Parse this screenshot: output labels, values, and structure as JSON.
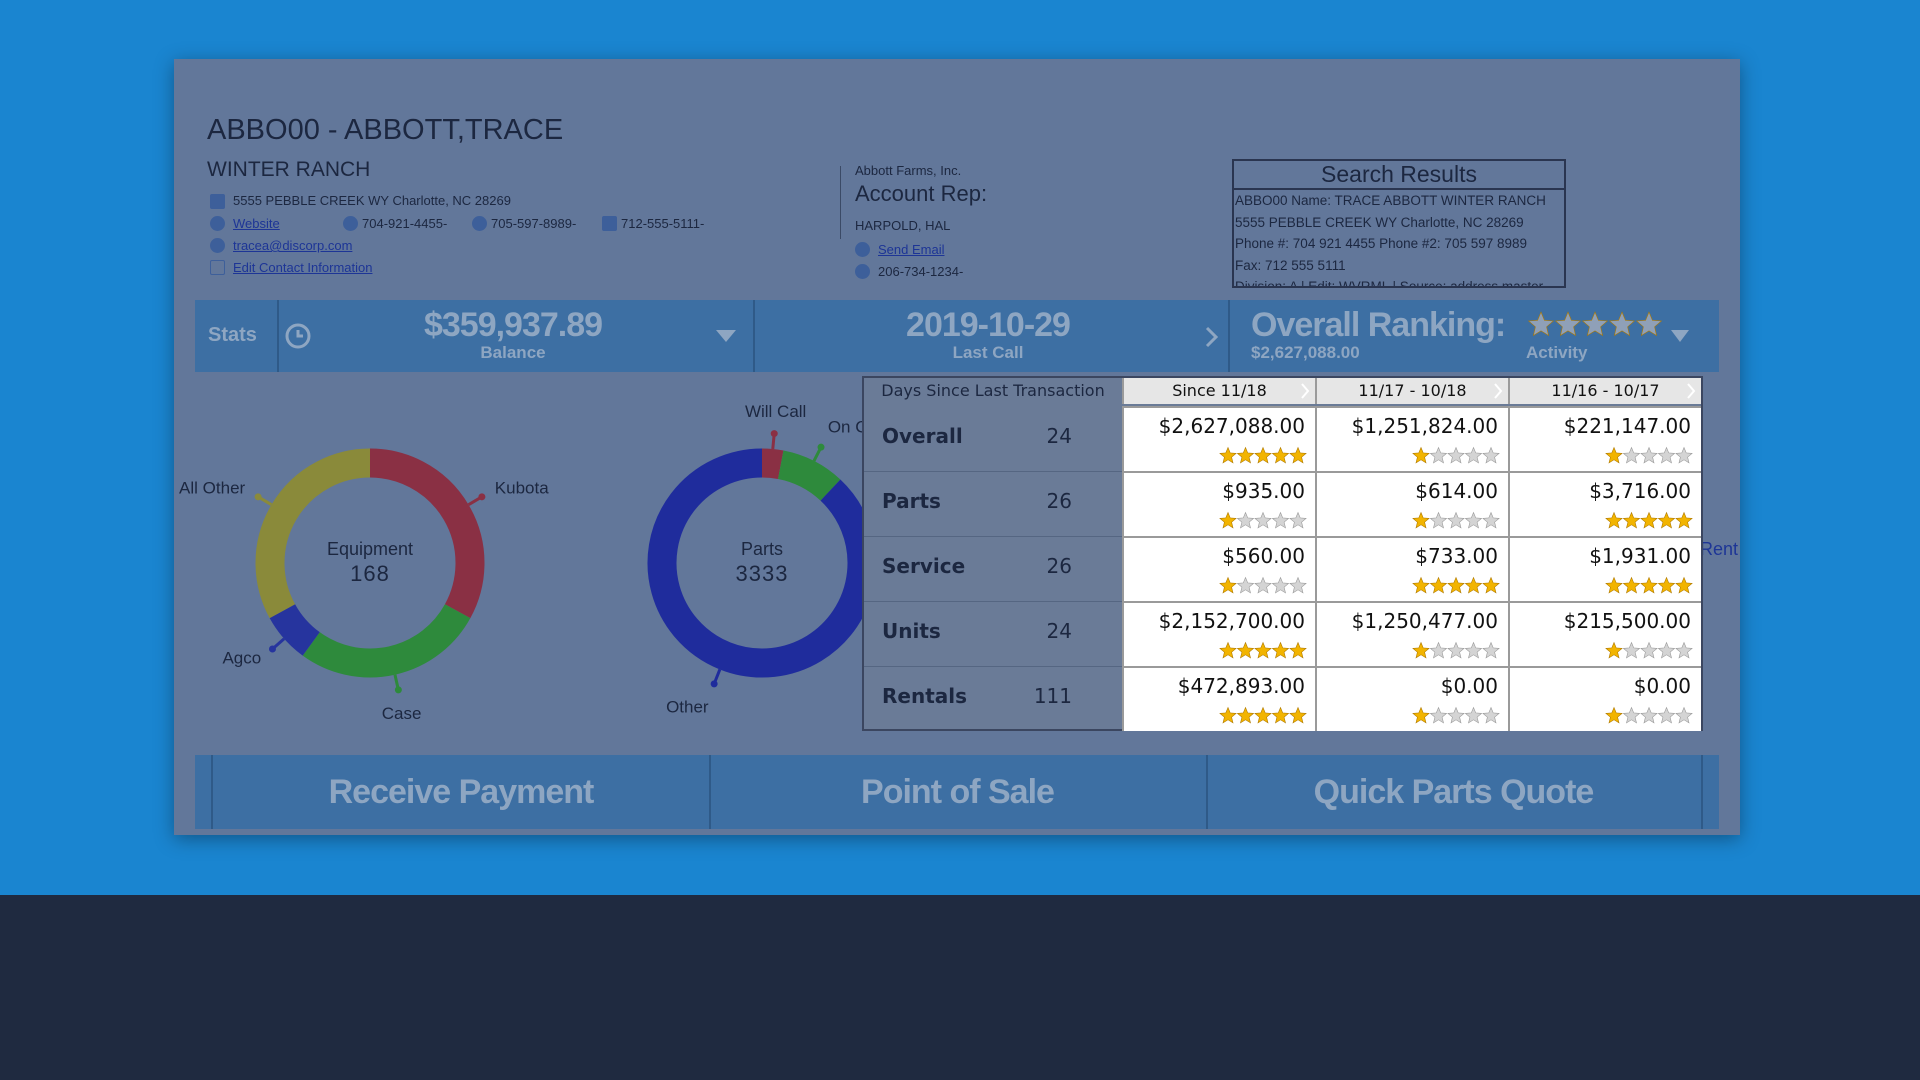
{
  "header": {
    "title": "ABBO00 - ABBOTT,TRACE",
    "subtitle": "WINTER RANCH",
    "address": "5555 PEBBLE CREEK WY Charlotte, NC 28269",
    "website": "Website",
    "phones": [
      "704-921-4455-",
      "705-597-8989-",
      "712-555-5111-"
    ],
    "email": "tracea@discorp.com",
    "edit": "Edit Contact Information"
  },
  "rep": {
    "company": "Abbott Farms, Inc.",
    "heading": "Account Rep:",
    "name": "HARPOLD, HAL",
    "email": "Send Email",
    "phone": "206-734-1234-"
  },
  "search": {
    "title": "Search Results",
    "lines": [
      "ABBO00 Name: TRACE ABBOTT WINTER RANCH",
      "5555 PEBBLE CREEK WY Charlotte, NC 28269",
      "Phone #: 704 921 4455 Phone #2: 705 597 8989",
      "Fax: 712 555 5111",
      "Division: A | Edit: WVRML | Source: address master"
    ]
  },
  "stats": {
    "label": "Stats",
    "balance": "$359,937.89",
    "balance_label": "Balance",
    "last_call": "2019-10-29",
    "last_call_label": "Last Call",
    "ranking_title": "Overall Ranking:",
    "ranking_value": "$2,627,088.00",
    "activity_label": "Activity",
    "activity_stars": 5
  },
  "donuts": [
    {
      "center_label": "Equipment",
      "center_value": 168,
      "segments": [
        {
          "name": "Kubota",
          "color": "#8a3044",
          "value": 33
        },
        {
          "name": "Case",
          "color": "#2e8a3c",
          "value": 27
        },
        {
          "name": "Agco",
          "color": "#26349e",
          "value": 7
        },
        {
          "name": "All Other",
          "color": "#8a8a3a",
          "value": 33
        }
      ]
    },
    {
      "center_label": "Parts",
      "center_value": 3333,
      "segments": [
        {
          "name": "Will Call",
          "color": "#8a3044",
          "value": 3
        },
        {
          "name": "On C",
          "color": "#2e8a3c",
          "value": 9
        },
        {
          "name": "Other",
          "color": "#1f2c9c",
          "value": 88
        }
      ]
    }
  ],
  "hidden_label": "Rent",
  "table": {
    "corner": "Days Since Last Transaction",
    "columns": [
      "Since 11/18",
      "11/17 - 10/18",
      "11/16 - 10/17"
    ],
    "rows": [
      {
        "label": "Overall",
        "days": 24,
        "cells": [
          {
            "amount": "$2,627,088.00",
            "stars": 5
          },
          {
            "amount": "$1,251,824.00",
            "stars": 1
          },
          {
            "amount": "$221,147.00",
            "stars": 1
          }
        ]
      },
      {
        "label": "Parts",
        "days": 26,
        "cells": [
          {
            "amount": "$935.00",
            "stars": 1
          },
          {
            "amount": "$614.00",
            "stars": 1
          },
          {
            "amount": "$3,716.00",
            "stars": 5
          }
        ]
      },
      {
        "label": "Service",
        "days": 26,
        "cells": [
          {
            "amount": "$560.00",
            "stars": 1
          },
          {
            "amount": "$733.00",
            "stars": 5
          },
          {
            "amount": "$1,931.00",
            "stars": 5
          }
        ]
      },
      {
        "label": "Units",
        "days": 24,
        "cells": [
          {
            "amount": "$2,152,700.00",
            "stars": 5
          },
          {
            "amount": "$1,250,477.00",
            "stars": 1
          },
          {
            "amount": "$215,500.00",
            "stars": 1
          }
        ]
      },
      {
        "label": "Rentals",
        "days": 111,
        "cells": [
          {
            "amount": "$472,893.00",
            "stars": 5
          },
          {
            "amount": "$0.00",
            "stars": 1
          },
          {
            "amount": "$0.00",
            "stars": 1
          }
        ]
      }
    ]
  },
  "actions": [
    "Receive Payment",
    "Point of Sale",
    "Quick Parts Quote"
  ]
}
